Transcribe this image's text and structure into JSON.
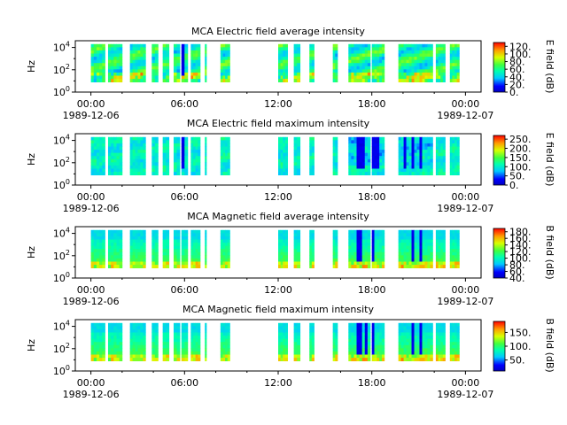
{
  "chart_data": [
    {
      "type": "heatmap",
      "title": "MCA  Electric field average intensity",
      "ylabel": "Hz",
      "y_scale": "log",
      "ylim": [
        1,
        40000
      ],
      "y_ticks": [
        {
          "exp": "0"
        },
        {
          "exp": "2"
        },
        {
          "exp": "4"
        }
      ],
      "x_ticks": [
        {
          "hour": 0,
          "time": "00:00",
          "date": "1989-12-06"
        },
        {
          "hour": 6,
          "time": "06:00",
          "date": ""
        },
        {
          "hour": 12,
          "time": "12:00",
          "date": ""
        },
        {
          "hour": 18,
          "time": "18:00",
          "date": ""
        },
        {
          "hour": 24,
          "time": "00:00",
          "date": "1989-12-07"
        }
      ],
      "xlim_hours": [
        -1,
        25
      ],
      "colorbar": {
        "label": "E field (dB)",
        "min": 0,
        "max": 130,
        "ticks": [
          "0.",
          "20.",
          "40.",
          "60.",
          "80.",
          "100.",
          "120."
        ],
        "tick_values": [
          0,
          20,
          40,
          60,
          80,
          100,
          120
        ]
      },
      "low_band_warm": "medium",
      "blue_columns": [
        5.85,
        5.95
      ]
    },
    {
      "type": "heatmap",
      "title": "MCA  Electric field maximum intensity",
      "ylabel": "Hz",
      "y_scale": "log",
      "ylim": [
        1,
        40000
      ],
      "y_ticks": [
        {
          "exp": "0"
        },
        {
          "exp": "2"
        },
        {
          "exp": "4"
        }
      ],
      "x_ticks": [
        {
          "hour": 0,
          "time": "00:00",
          "date": "1989-12-06"
        },
        {
          "hour": 6,
          "time": "06:00",
          "date": ""
        },
        {
          "hour": 12,
          "time": "12:00",
          "date": ""
        },
        {
          "hour": 18,
          "time": "18:00",
          "date": ""
        },
        {
          "hour": 24,
          "time": "00:00",
          "date": "1989-12-07"
        }
      ],
      "xlim_hours": [
        -1,
        25
      ],
      "colorbar": {
        "label": "E field (dB)",
        "min": 0,
        "max": 270,
        "ticks": [
          "0.",
          "50.",
          "100.",
          "150.",
          "200.",
          "250."
        ],
        "tick_values": [
          0,
          50,
          100,
          150,
          200,
          250
        ]
      },
      "low_band_warm": "none",
      "blue_columns": [
        5.85,
        5.95,
        17.2,
        17.5,
        18.0,
        18.3,
        20.1,
        20.6,
        21.1
      ]
    },
    {
      "type": "heatmap",
      "title": "MCA  Magnetic field average intensity",
      "ylabel": "Hz",
      "y_scale": "log",
      "ylim": [
        1,
        40000
      ],
      "y_ticks": [
        {
          "exp": "0"
        },
        {
          "exp": "2"
        },
        {
          "exp": "4"
        }
      ],
      "x_ticks": [
        {
          "hour": 0,
          "time": "00:00",
          "date": "1989-12-06"
        },
        {
          "hour": 6,
          "time": "06:00",
          "date": ""
        },
        {
          "hour": 12,
          "time": "12:00",
          "date": ""
        },
        {
          "hour": 18,
          "time": "18:00",
          "date": ""
        },
        {
          "hour": 24,
          "time": "00:00",
          "date": "1989-12-07"
        }
      ],
      "xlim_hours": [
        -1,
        25
      ],
      "colorbar": {
        "label": "B field (dB)",
        "min": 40,
        "max": 190,
        "ticks": [
          "40.",
          "60.",
          "80.",
          "100.",
          "120.",
          "140.",
          "160.",
          "180."
        ],
        "tick_values": [
          40,
          60,
          80,
          100,
          120,
          140,
          160,
          180
        ]
      },
      "low_band_warm": "high",
      "blue_columns": [
        17.2,
        18.0,
        20.6,
        21.1
      ]
    },
    {
      "type": "heatmap",
      "title": "MCA  Magnetic field maximum intensity",
      "ylabel": "Hz",
      "y_scale": "log",
      "ylim": [
        1,
        40000
      ],
      "y_ticks": [
        {
          "exp": "0"
        },
        {
          "exp": "2"
        },
        {
          "exp": "4"
        }
      ],
      "x_ticks": [
        {
          "hour": 0,
          "time": "00:00",
          "date": "1989-12-06"
        },
        {
          "hour": 6,
          "time": "06:00",
          "date": ""
        },
        {
          "hour": 12,
          "time": "12:00",
          "date": ""
        },
        {
          "hour": 18,
          "time": "18:00",
          "date": ""
        },
        {
          "hour": 24,
          "time": "00:00",
          "date": "1989-12-07"
        }
      ],
      "xlim_hours": [
        -1,
        25
      ],
      "colorbar": {
        "label": "B field (dB)",
        "min": 10,
        "max": 190,
        "ticks": [
          "50.",
          "100.",
          "150."
        ],
        "tick_values": [
          50,
          100,
          150
        ]
      },
      "low_band_warm": "high",
      "blue_columns": [
        17.2,
        17.6,
        18.0,
        20.6,
        21.1
      ]
    }
  ],
  "data_segments_hours": [
    [
      0.0,
      0.9
    ],
    [
      1.1,
      2.0
    ],
    [
      2.5,
      3.5
    ],
    [
      3.9,
      4.3
    ],
    [
      4.6,
      5.0
    ],
    [
      5.3,
      5.7
    ],
    [
      5.8,
      6.2
    ],
    [
      6.4,
      7.0
    ],
    [
      7.3,
      7.4
    ],
    [
      8.3,
      8.9
    ],
    [
      12.0,
      12.6
    ],
    [
      13.0,
      13.4
    ],
    [
      14.0,
      14.3
    ],
    [
      15.5,
      15.8
    ],
    [
      16.5,
      17.9
    ],
    [
      18.0,
      18.8
    ],
    [
      19.7,
      21.9
    ],
    [
      22.1,
      22.7
    ],
    [
      23.0,
      23.6
    ]
  ],
  "colors": {
    "axes": "#000000",
    "background": "#ffffff"
  }
}
